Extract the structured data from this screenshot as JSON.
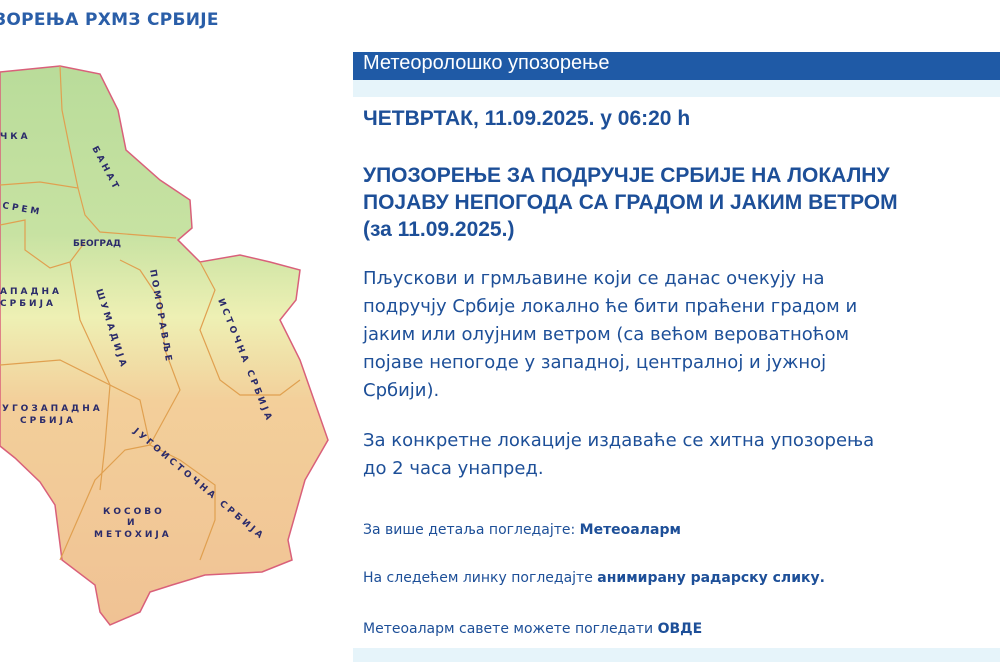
{
  "site_title": "ЗОРЕЊА РХМЗ СРБИЈЕ",
  "map": {
    "regions": {
      "backa": "ЧКА",
      "banat": "БАНАТ",
      "srem": "СРЕМ",
      "beograd": "БЕОГРАД",
      "zapadna_1": "АПАДНА",
      "zapadna_2": "СРБИЈА",
      "sumadija": "ШУМАДИЈА",
      "pomoravlje": "ПОМОРАВЉЕ",
      "istocna": "ИСТОЧНА СРБИЈА",
      "jugozapadna_1": "УГОЗАПАДНА",
      "jugozapadna_2": "СРБИЈА",
      "jugoistocna": "ЈУГОИСТОЧНА СРБИЈА",
      "kosovo_1": "КОСОВО",
      "kosovo_2": "И",
      "kosovo_3": "МЕТОХИЈА"
    }
  },
  "panel": {
    "header": "Метеоролошко упозорење",
    "date_line": "ЧЕТВРТАК, 11.09.2025. у 06:20 h",
    "headline": [
      "УПОЗОРЕЊЕ ЗА ПОДРУЧЈЕ СРБИЈЕ НА ЛОКАЛНУ",
      "ПОЈАВУ НЕПОГОДА СА ГРАДОМ И ЈАКИМ ВЕТРОМ",
      "(за 11.09.2025.)"
    ],
    "paragraph1": [
      "Пљускови и грмљавине који се данас очекују на",
      "подручју Србије локално ће бити праћени градом и",
      "јаким или олујним ветром (са већом вероватноћом",
      "појаве непогоде у западној, централној и јужној",
      "Србији)."
    ],
    "paragraph2": [
      "За конкретне локације издаваће се хитна упозорења",
      "до 2 часа унапред."
    ],
    "details_text": "За више детаља погледајте: ",
    "details_link": "Метеоаларм",
    "radar_text": "На следећем линку погледајте ",
    "radar_link": "анимирану радарску слику.",
    "advice_text": "Метеоаларм савете можете погледати ",
    "advice_link": "ОВДЕ"
  },
  "colors": {
    "header_bar": "#1f5aa6",
    "band": "#e6f4fa",
    "text": "#1d4f98"
  }
}
